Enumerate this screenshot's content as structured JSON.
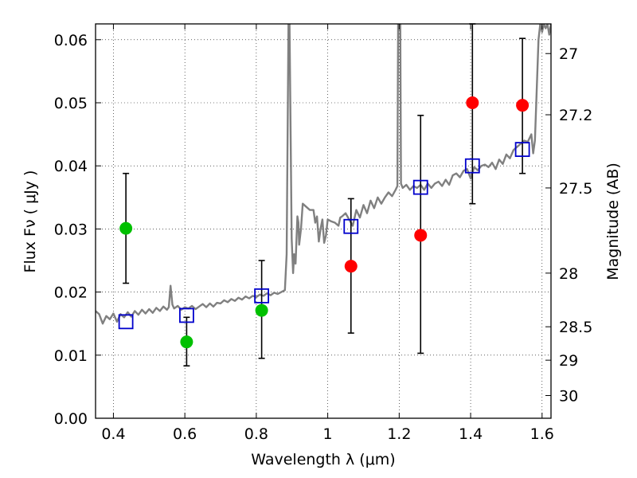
{
  "chart_data": {
    "type": "scatter",
    "title": "",
    "xlabel": "Wavelength  λ (μm)",
    "ylabel": "Flux  Fν  ( μJy )",
    "ylabel_right": "Magnitude (AB)",
    "xlim": [
      0.35,
      1.625
    ],
    "ylim": [
      0.0,
      0.0625
    ],
    "grid": true,
    "x_ticks": [
      0.4,
      0.6,
      0.8,
      1.0,
      1.2,
      1.4,
      1.6
    ],
    "x_tick_labels": [
      "0.4",
      "0.6",
      "0.8",
      "1",
      "1.2",
      "1.4",
      "1.6"
    ],
    "y_ticks": [
      0.0,
      0.01,
      0.02,
      0.03,
      0.04,
      0.05,
      0.06
    ],
    "y_tick_labels": [
      "0.00",
      "0.01",
      "0.02",
      "0.03",
      "0.04",
      "0.05",
      "0.06"
    ],
    "right_ticks": [
      {
        "label": "27",
        "flux": 0.0578
      },
      {
        "label": "27.2",
        "flux": 0.0481
      },
      {
        "label": "27.5",
        "flux": 0.0365
      },
      {
        "label": "28",
        "flux": 0.023
      },
      {
        "label": "28.5",
        "flux": 0.0145
      },
      {
        "label": "29",
        "flux": 0.0092
      },
      {
        "label": "30",
        "flux": 0.0036
      }
    ],
    "series": [
      {
        "color": "#808080",
        "style": "line",
        "points": [
          [
            0.35,
            0.017
          ],
          [
            0.36,
            0.0165
          ],
          [
            0.37,
            0.015
          ],
          [
            0.38,
            0.0162
          ],
          [
            0.39,
            0.0157
          ],
          [
            0.4,
            0.0166
          ],
          [
            0.41,
            0.0153
          ],
          [
            0.42,
            0.0165
          ],
          [
            0.43,
            0.016
          ],
          [
            0.44,
            0.0168
          ],
          [
            0.45,
            0.0161
          ],
          [
            0.46,
            0.017
          ],
          [
            0.47,
            0.0164
          ],
          [
            0.48,
            0.0172
          ],
          [
            0.49,
            0.0166
          ],
          [
            0.5,
            0.0173
          ],
          [
            0.51,
            0.0167
          ],
          [
            0.52,
            0.0175
          ],
          [
            0.53,
            0.017
          ],
          [
            0.54,
            0.0177
          ],
          [
            0.55,
            0.0172
          ],
          [
            0.555,
            0.0176
          ],
          [
            0.56,
            0.021
          ],
          [
            0.565,
            0.018
          ],
          [
            0.57,
            0.0174
          ],
          [
            0.58,
            0.0178
          ],
          [
            0.59,
            0.0172
          ],
          [
            0.6,
            0.0176
          ],
          [
            0.61,
            0.0174
          ],
          [
            0.62,
            0.0178
          ],
          [
            0.63,
            0.0173
          ],
          [
            0.64,
            0.0177
          ],
          [
            0.65,
            0.0181
          ],
          [
            0.66,
            0.0176
          ],
          [
            0.67,
            0.0182
          ],
          [
            0.68,
            0.0177
          ],
          [
            0.69,
            0.0183
          ],
          [
            0.7,
            0.0182
          ],
          [
            0.71,
            0.0187
          ],
          [
            0.72,
            0.0184
          ],
          [
            0.73,
            0.0189
          ],
          [
            0.74,
            0.0186
          ],
          [
            0.75,
            0.0191
          ],
          [
            0.76,
            0.0188
          ],
          [
            0.77,
            0.0193
          ],
          [
            0.78,
            0.019
          ],
          [
            0.79,
            0.0194
          ],
          [
            0.8,
            0.0192
          ],
          [
            0.81,
            0.0196
          ],
          [
            0.82,
            0.0194
          ],
          [
            0.83,
            0.0198
          ],
          [
            0.84,
            0.0195
          ],
          [
            0.85,
            0.0199
          ],
          [
            0.86,
            0.0197
          ],
          [
            0.87,
            0.02
          ],
          [
            0.88,
            0.0203
          ],
          [
            0.885,
            0.026
          ],
          [
            0.888,
            0.048
          ],
          [
            0.89,
            0.0625
          ],
          [
            0.893,
            0.0625
          ],
          [
            0.896,
            0.045
          ],
          [
            0.899,
            0.0285
          ],
          [
            0.903,
            0.023
          ],
          [
            0.906,
            0.026
          ],
          [
            0.91,
            0.0245
          ],
          [
            0.915,
            0.032
          ],
          [
            0.918,
            0.031
          ],
          [
            0.92,
            0.0275
          ],
          [
            0.925,
            0.03
          ],
          [
            0.93,
            0.034
          ],
          [
            0.94,
            0.0335
          ],
          [
            0.95,
            0.033
          ],
          [
            0.96,
            0.033
          ],
          [
            0.965,
            0.031
          ],
          [
            0.97,
            0.032
          ],
          [
            0.975,
            0.028
          ],
          [
            0.98,
            0.03
          ],
          [
            0.985,
            0.0315
          ],
          [
            0.99,
            0.0278
          ],
          [
            0.995,
            0.029
          ],
          [
            1.0,
            0.0315
          ],
          [
            1.01,
            0.0312
          ],
          [
            1.02,
            0.031
          ],
          [
            1.03,
            0.0305
          ],
          [
            1.035,
            0.0318
          ],
          [
            1.04,
            0.032
          ],
          [
            1.05,
            0.0325
          ],
          [
            1.06,
            0.0315
          ],
          [
            1.07,
            0.0305
          ],
          [
            1.08,
            0.033
          ],
          [
            1.09,
            0.0318
          ],
          [
            1.1,
            0.0338
          ],
          [
            1.11,
            0.0325
          ],
          [
            1.12,
            0.0345
          ],
          [
            1.13,
            0.0333
          ],
          [
            1.14,
            0.035
          ],
          [
            1.15,
            0.034
          ],
          [
            1.16,
            0.035
          ],
          [
            1.17,
            0.0358
          ],
          [
            1.18,
            0.0352
          ],
          [
            1.19,
            0.0362
          ],
          [
            1.195,
            0.0368
          ],
          [
            1.197,
            0.0625
          ],
          [
            1.203,
            0.0625
          ],
          [
            1.205,
            0.0372
          ],
          [
            1.21,
            0.0365
          ],
          [
            1.22,
            0.037
          ],
          [
            1.23,
            0.0362
          ],
          [
            1.24,
            0.0368
          ],
          [
            1.25,
            0.0365
          ],
          [
            1.26,
            0.037
          ],
          [
            1.27,
            0.0362
          ],
          [
            1.28,
            0.0372
          ],
          [
            1.29,
            0.0365
          ],
          [
            1.3,
            0.0372
          ],
          [
            1.31,
            0.0375
          ],
          [
            1.32,
            0.0368
          ],
          [
            1.33,
            0.0378
          ],
          [
            1.34,
            0.037
          ],
          [
            1.35,
            0.0385
          ],
          [
            1.36,
            0.0388
          ],
          [
            1.37,
            0.0382
          ],
          [
            1.38,
            0.0392
          ],
          [
            1.39,
            0.0395
          ],
          [
            1.4,
            0.038
          ],
          [
            1.41,
            0.0398
          ],
          [
            1.42,
            0.0393
          ],
          [
            1.43,
            0.04
          ],
          [
            1.44,
            0.0402
          ],
          [
            1.45,
            0.0398
          ],
          [
            1.46,
            0.0405
          ],
          [
            1.47,
            0.0395
          ],
          [
            1.48,
            0.041
          ],
          [
            1.49,
            0.0403
          ],
          [
            1.5,
            0.0418
          ],
          [
            1.51,
            0.0412
          ],
          [
            1.52,
            0.0425
          ],
          [
            1.53,
            0.043
          ],
          [
            1.54,
            0.0435
          ],
          [
            1.55,
            0.044
          ],
          [
            1.56,
            0.0438
          ],
          [
            1.57,
            0.045
          ],
          [
            1.575,
            0.042
          ],
          [
            1.58,
            0.044
          ],
          [
            1.59,
            0.06
          ],
          [
            1.595,
            0.0625
          ],
          [
            1.6,
            0.0612
          ],
          [
            1.605,
            0.0625
          ],
          [
            1.61,
            0.0618
          ],
          [
            1.615,
            0.0625
          ],
          [
            1.62,
            0.0608
          ],
          [
            1.625,
            0.0625
          ]
        ]
      },
      {
        "color": "#00c000",
        "style": "marker-circle",
        "points": [
          {
            "x": 0.435,
            "y": 0.0301,
            "err_low": 0.0214,
            "err_high": 0.0388
          },
          {
            "x": 0.605,
            "y": 0.0121,
            "err_low": 0.0083,
            "err_high": 0.016
          },
          {
            "x": 0.815,
            "y": 0.0171,
            "err_low": 0.0095,
            "err_high": 0.025
          }
        ]
      },
      {
        "color": "#ff0000",
        "style": "marker-circle",
        "points": [
          {
            "x": 1.065,
            "y": 0.0241,
            "err_low": 0.0135,
            "err_high": 0.0348
          },
          {
            "x": 1.26,
            "y": 0.029,
            "err_low": 0.0103,
            "err_high": 0.048
          },
          {
            "x": 1.405,
            "y": 0.05,
            "err_low": 0.034,
            "err_high": 0.0625
          },
          {
            "x": 1.545,
            "y": 0.0496,
            "err_low": 0.0388,
            "err_high": 0.0602
          }
        ]
      },
      {
        "color": "#0000cc",
        "style": "marker-square-open",
        "points": [
          {
            "x": 0.435,
            "y": 0.0153
          },
          {
            "x": 0.605,
            "y": 0.0163
          },
          {
            "x": 0.815,
            "y": 0.0194
          },
          {
            "x": 1.065,
            "y": 0.0304
          },
          {
            "x": 1.26,
            "y": 0.0366
          },
          {
            "x": 1.405,
            "y": 0.04
          },
          {
            "x": 1.545,
            "y": 0.0426
          }
        ]
      }
    ]
  }
}
